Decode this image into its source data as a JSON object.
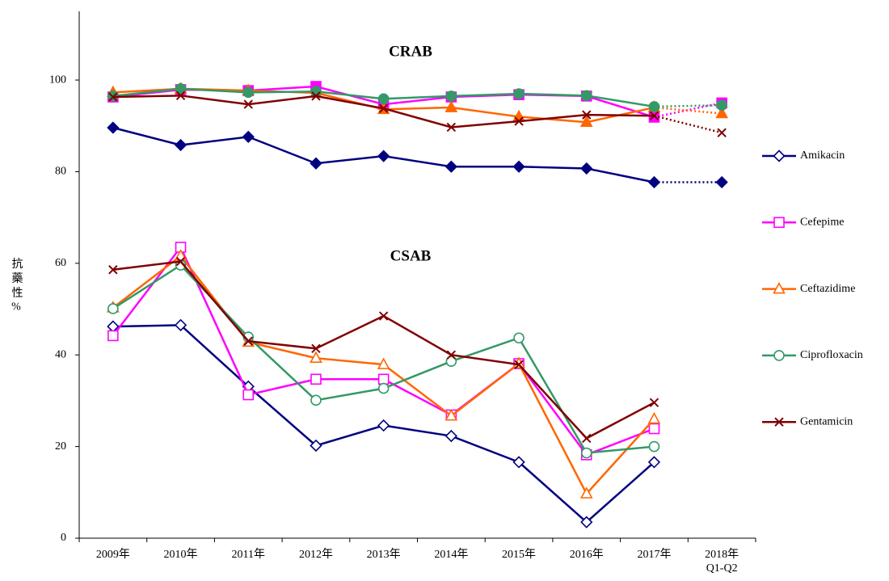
{
  "chart_data": {
    "type": "line",
    "annotations": [
      "CRAB",
      "CSAB"
    ],
    "y_label": "抗藥性%",
    "categories": [
      "2009年",
      "2010年",
      "2011年",
      "2012年",
      "2013年",
      "2014年",
      "2015年",
      "2016年",
      "2017年",
      "2018年\nQ1-Q2"
    ],
    "ylim": [
      0,
      115
    ],
    "yticks": [
      0,
      20,
      40,
      60,
      80,
      100
    ],
    "legend": "right",
    "series": [
      {
        "name": "Amikacin",
        "color": "#000080",
        "marker": "diamond",
        "filled": true,
        "dotted_last_segment": true,
        "values": [
          89.6,
          85.8,
          87.6,
          81.8,
          83.4,
          81.1,
          81.1,
          80.7,
          77.7,
          77.7
        ]
      },
      {
        "name": "Cefepime",
        "color": "#FF00FF",
        "marker": "square",
        "filled": true,
        "dotted_last_segment": true,
        "values": [
          96.3,
          97.9,
          97.7,
          98.6,
          94.7,
          96.3,
          96.8,
          96.5,
          91.9,
          95.0
        ]
      },
      {
        "name": "Ceftazidime",
        "color": "#FF6600",
        "marker": "triangle",
        "filled": true,
        "dotted_last_segment": true,
        "values": [
          97.3,
          98.1,
          97.7,
          97.2,
          93.6,
          94.0,
          92.0,
          90.8,
          94.0,
          92.7
        ]
      },
      {
        "name": "Ciprofloxacin",
        "color": "#339966",
        "marker": "circle",
        "filled": true,
        "dotted_last_segment": true,
        "values": [
          96.5,
          98.1,
          97.3,
          97.5,
          95.9,
          96.5,
          97.0,
          96.6,
          94.2,
          94.5
        ]
      },
      {
        "name": "Gentamicin",
        "color": "#800000",
        "marker": "x",
        "filled": true,
        "dotted_last_segment": true,
        "values": [
          96.3,
          96.6,
          94.7,
          96.5,
          93.8,
          89.7,
          91.0,
          92.4,
          92.2,
          88.5
        ]
      },
      {
        "name": "Amikacin",
        "color": "#000080",
        "marker": "diamond",
        "filled": false,
        "values": [
          46.2,
          46.5,
          33.1,
          20.2,
          24.6,
          22.3,
          16.6,
          3.5,
          16.6,
          null
        ]
      },
      {
        "name": "Cefepime",
        "color": "#FF00FF",
        "marker": "square",
        "filled": false,
        "values": [
          44.2,
          63.5,
          31.3,
          34.7,
          34.7,
          26.9,
          38.1,
          18.2,
          23.9,
          null
        ]
      },
      {
        "name": "Ceftazidime",
        "color": "#FF6600",
        "marker": "triangle",
        "filled": false,
        "values": [
          50.3,
          61.6,
          42.8,
          39.3,
          37.9,
          26.7,
          38.1,
          9.7,
          26.0,
          null
        ]
      },
      {
        "name": "Ciprofloxacin",
        "color": "#339966",
        "marker": "circle",
        "filled": false,
        "values": [
          50.1,
          59.6,
          43.9,
          30.1,
          32.7,
          38.6,
          43.7,
          18.6,
          20.0,
          null
        ]
      },
      {
        "name": "Gentamicin",
        "color": "#800000",
        "marker": "x",
        "filled": false,
        "values": [
          58.6,
          60.4,
          43.0,
          41.4,
          48.5,
          40.0,
          37.9,
          21.8,
          29.6,
          null
        ]
      }
    ]
  }
}
